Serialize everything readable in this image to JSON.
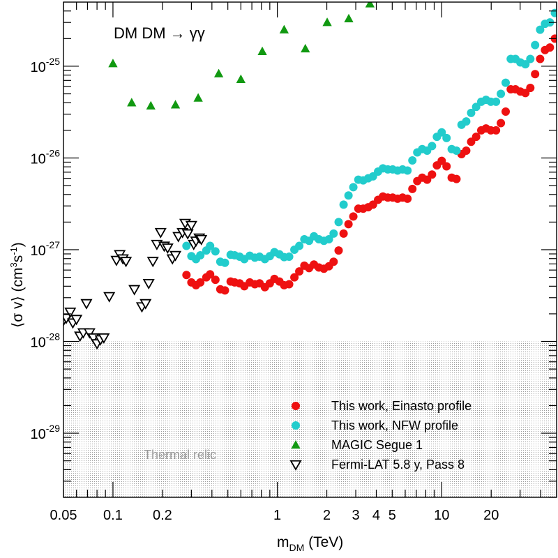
{
  "chart_data": {
    "type": "scatter",
    "xscale": "log",
    "yscale": "log",
    "xlim": [
      0.05,
      42
    ],
    "ylim": [
      2e-30,
      5e-25
    ],
    "xlabel_main": "m",
    "xlabel_sub": "DM",
    "xlabel_unit": " (TeV)",
    "ylabel_open": "⟨σ v⟩ (cm",
    "ylabel_sup1": "3",
    "ylabel_mid": "s",
    "ylabel_sup2": "-1",
    "ylabel_close": ")",
    "annotation": "DM DM → γγ",
    "thermal_relic": {
      "label": "Thermal relic",
      "ymax": 1e-28
    },
    "x_ticks": [
      {
        "value": 0.05,
        "label": "0.05"
      },
      {
        "value": 0.1,
        "label": "0.1"
      },
      {
        "value": 0.2,
        "label": "0.2"
      },
      {
        "value": 1,
        "label": "1"
      },
      {
        "value": 2,
        "label": "2"
      },
      {
        "value": 3,
        "label": "3"
      },
      {
        "value": 4,
        "label": "4"
      },
      {
        "value": 5,
        "label": "5"
      },
      {
        "value": 10,
        "label": "10"
      },
      {
        "value": 20,
        "label": "20"
      }
    ],
    "y_ticks": [
      {
        "value": 1e-29,
        "base": "10",
        "exp": "-29"
      },
      {
        "value": 1e-28,
        "base": "10",
        "exp": "-28"
      },
      {
        "value": 1e-27,
        "base": "10",
        "exp": "-27"
      },
      {
        "value": 1e-26,
        "base": "10",
        "exp": "-26"
      },
      {
        "value": 1e-25,
        "base": "10",
        "exp": "-25"
      }
    ],
    "legend_position": "bottom-right",
    "series": [
      {
        "name": "This work, Einasto profile",
        "marker": "circle",
        "color": "#ee1111",
        "points": [
          [
            0.28,
            5.3e-28
          ],
          [
            0.3,
            4.4e-28
          ],
          [
            0.32,
            4.1e-28
          ],
          [
            0.34,
            4.4e-28
          ],
          [
            0.37,
            5e-28
          ],
          [
            0.39,
            5.4e-28
          ],
          [
            0.42,
            4.7e-28
          ],
          [
            0.45,
            3.7e-28
          ],
          [
            0.48,
            3.6e-28
          ],
          [
            0.52,
            4.5e-28
          ],
          [
            0.55,
            4.4e-28
          ],
          [
            0.59,
            4.3e-28
          ],
          [
            0.63,
            4e-28
          ],
          [
            0.68,
            4.4e-28
          ],
          [
            0.73,
            4.2e-28
          ],
          [
            0.78,
            4.3e-28
          ],
          [
            0.84,
            3.9e-28
          ],
          [
            0.9,
            4.3e-28
          ],
          [
            0.96,
            4.8e-28
          ],
          [
            1.03,
            4.5e-28
          ],
          [
            1.1,
            4.1e-28
          ],
          [
            1.18,
            4.2e-28
          ],
          [
            1.27,
            5e-28
          ],
          [
            1.36,
            5.8e-28
          ],
          [
            1.46,
            6.7e-28
          ],
          [
            1.56,
            6.3e-28
          ],
          [
            1.67,
            6.9e-28
          ],
          [
            1.79,
            6.4e-28
          ],
          [
            1.92,
            6.2e-28
          ],
          [
            2.06,
            6.6e-28
          ],
          [
            2.2,
            7.4e-28
          ],
          [
            2.36,
            9.8e-28
          ],
          [
            2.53,
            1.5e-27
          ],
          [
            2.71,
            1.9e-27
          ],
          [
            2.9,
            2.3e-27
          ],
          [
            3.11,
            2.8e-27
          ],
          [
            3.33,
            2.8e-27
          ],
          [
            3.57,
            2.9e-27
          ],
          [
            3.82,
            3.1e-27
          ],
          [
            4.1,
            3.5e-27
          ],
          [
            4.39,
            3.8e-27
          ],
          [
            4.7,
            3.7e-27
          ],
          [
            5.03,
            3.7e-27
          ],
          [
            5.39,
            3.6e-27
          ],
          [
            5.78,
            3.7e-27
          ],
          [
            6.19,
            3.6e-27
          ],
          [
            6.63,
            4.6e-27
          ],
          [
            7.1,
            5.6e-27
          ],
          [
            7.61,
            6.1e-27
          ],
          [
            8.15,
            5.8e-27
          ],
          [
            8.73,
            6.6e-27
          ],
          [
            9.35,
            8.3e-27
          ],
          [
            10.0,
            9.3e-27
          ],
          [
            10.7,
            8.1e-27
          ],
          [
            11.5,
            6.1e-27
          ],
          [
            12.3,
            5.9e-27
          ],
          [
            13.2,
            1.1e-26
          ],
          [
            14.1,
            1.2e-26
          ],
          [
            15.1,
            1.5e-26
          ],
          [
            16.2,
            1.7e-26
          ],
          [
            17.4,
            2e-26
          ],
          [
            18.6,
            2.1e-26
          ],
          [
            19.9,
            2e-26
          ],
          [
            21.4,
            2e-26
          ],
          [
            22.9,
            2.4e-26
          ],
          [
            24.5,
            3.2e-26
          ],
          [
            26.3,
            5.6e-26
          ],
          [
            28.1,
            5.6e-26
          ],
          [
            30.1,
            5.3e-26
          ],
          [
            32.3,
            5.1e-26
          ],
          [
            34.6,
            5.8e-26
          ],
          [
            37.0,
            8.2e-26
          ],
          [
            39.7,
            1.2e-25
          ],
          [
            42.5,
            1.5e-25
          ],
          [
            45.5,
            1.6e-25
          ],
          [
            48.8,
            2e-25
          ]
        ]
      },
      {
        "name": "This work, NFW profile",
        "marker": "circle",
        "color": "#22cccc",
        "points": [
          [
            0.28,
            1.1e-27
          ],
          [
            0.3,
            8.5e-28
          ],
          [
            0.32,
            7.9e-28
          ],
          [
            0.34,
            8.7e-28
          ],
          [
            0.37,
            9.8e-28
          ],
          [
            0.39,
            1.1e-27
          ],
          [
            0.42,
            9.6e-28
          ],
          [
            0.45,
            7.4e-28
          ],
          [
            0.48,
            7.2e-28
          ],
          [
            0.52,
            8.8e-28
          ],
          [
            0.55,
            8.7e-28
          ],
          [
            0.59,
            8.4e-28
          ],
          [
            0.63,
            7.9e-28
          ],
          [
            0.68,
            8.6e-28
          ],
          [
            0.73,
            8.2e-28
          ],
          [
            0.78,
            8.4e-28
          ],
          [
            0.84,
            7.9e-28
          ],
          [
            0.9,
            8.5e-28
          ],
          [
            0.96,
            9.4e-28
          ],
          [
            1.03,
            8.9e-28
          ],
          [
            1.1,
            8.3e-28
          ],
          [
            1.18,
            8.4e-28
          ],
          [
            1.27,
            1e-27
          ],
          [
            1.36,
            1.1e-27
          ],
          [
            1.46,
            1.3e-27
          ],
          [
            1.56,
            1.25e-27
          ],
          [
            1.67,
            1.4e-27
          ],
          [
            1.79,
            1.3e-27
          ],
          [
            1.92,
            1.25e-27
          ],
          [
            2.06,
            1.3e-27
          ],
          [
            2.2,
            1.5e-27
          ],
          [
            2.36,
            2e-27
          ],
          [
            2.53,
            3.1e-27
          ],
          [
            2.71,
            3.9e-27
          ],
          [
            2.9,
            4.8e-27
          ],
          [
            3.11,
            5.8e-27
          ],
          [
            3.33,
            5.7e-27
          ],
          [
            3.57,
            6e-27
          ],
          [
            3.82,
            6.3e-27
          ],
          [
            4.1,
            7.1e-27
          ],
          [
            4.39,
            7.7e-27
          ],
          [
            4.7,
            7.5e-27
          ],
          [
            5.03,
            7.5e-27
          ],
          [
            5.39,
            7.3e-27
          ],
          [
            5.78,
            7.5e-27
          ],
          [
            6.19,
            7.3e-27
          ],
          [
            6.63,
            9.4e-27
          ],
          [
            7.1,
            1.15e-26
          ],
          [
            7.61,
            1.25e-26
          ],
          [
            8.15,
            1.2e-26
          ],
          [
            8.73,
            1.35e-26
          ],
          [
            9.35,
            1.7e-26
          ],
          [
            10.0,
            1.9e-26
          ],
          [
            10.7,
            1.65e-26
          ],
          [
            11.5,
            1.25e-26
          ],
          [
            12.3,
            1.2e-26
          ],
          [
            13.2,
            2.3e-26
          ],
          [
            14.1,
            2.5e-26
          ],
          [
            15.1,
            3.1e-26
          ],
          [
            16.2,
            3.6e-26
          ],
          [
            17.4,
            4.1e-26
          ],
          [
            18.6,
            4.3e-26
          ],
          [
            19.9,
            4.1e-26
          ],
          [
            21.4,
            4.1e-26
          ],
          [
            22.9,
            5e-26
          ],
          [
            24.5,
            6.6e-26
          ],
          [
            26.3,
            1.2e-25
          ],
          [
            28.1,
            1.2e-25
          ],
          [
            30.1,
            1.1e-25
          ],
          [
            32.3,
            1.05e-25
          ],
          [
            34.6,
            1.2e-25
          ],
          [
            37.0,
            1.7e-25
          ],
          [
            39.7,
            2.5e-25
          ],
          [
            42.5,
            2.9e-25
          ],
          [
            45.5,
            3e-25
          ],
          [
            48.8,
            3.8e-25
          ]
        ]
      },
      {
        "name": "MAGIC Segue 1",
        "marker": "triangle-up",
        "color": "#119911",
        "points": [
          [
            0.1,
            1.07e-25
          ],
          [
            0.13,
            4e-26
          ],
          [
            0.17,
            3.7e-26
          ],
          [
            0.24,
            3.8e-26
          ],
          [
            0.33,
            4.5e-26
          ],
          [
            0.44,
            8.3e-26
          ],
          [
            0.6,
            7.2e-26
          ],
          [
            0.81,
            1.45e-25
          ],
          [
            1.1,
            2.5e-25
          ],
          [
            1.48,
            1.55e-25
          ],
          [
            2.01,
            3e-25
          ],
          [
            2.72,
            3.3e-25
          ],
          [
            3.66,
            4.8e-25
          ]
        ]
      },
      {
        "name": "Fermi-LAT 5.8 y, Pass 8",
        "marker": "triangle-down",
        "color": "#000000",
        "points": [
          [
            0.05,
            1.7e-28
          ],
          [
            0.052,
            1.8e-28
          ],
          [
            0.055,
            2.1e-28
          ],
          [
            0.057,
            1.6e-28
          ],
          [
            0.06,
            1.75e-28
          ],
          [
            0.063,
            1.15e-28
          ],
          [
            0.066,
            1.25e-28
          ],
          [
            0.069,
            2.6e-28
          ],
          [
            0.072,
            1.25e-28
          ],
          [
            0.076,
            1.1e-28
          ],
          [
            0.08,
            9.5e-29
          ],
          [
            0.084,
            1.05e-28
          ],
          [
            0.088,
            1.1e-28
          ],
          [
            0.095,
            3.1e-28
          ],
          [
            0.105,
            7.7e-28
          ],
          [
            0.11,
            8.9e-28
          ],
          [
            0.115,
            8e-28
          ],
          [
            0.12,
            7.5e-28
          ],
          [
            0.135,
            3.7e-28
          ],
          [
            0.15,
            2.4e-28
          ],
          [
            0.158,
            2.6e-28
          ],
          [
            0.165,
            4.3e-28
          ],
          [
            0.175,
            7.5e-28
          ],
          [
            0.185,
            1.15e-27
          ],
          [
            0.195,
            1.55e-27
          ],
          [
            0.205,
            1.1e-27
          ],
          [
            0.215,
            1.05e-27
          ],
          [
            0.23,
            8e-28
          ],
          [
            0.24,
            8.7e-28
          ],
          [
            0.25,
            1.4e-27
          ],
          [
            0.265,
            1.55e-27
          ],
          [
            0.275,
            1.95e-27
          ],
          [
            0.285,
            1.5e-27
          ],
          [
            0.3,
            1.85e-27
          ],
          [
            0.31,
            1.15e-27
          ],
          [
            0.32,
            1.25e-27
          ],
          [
            0.335,
            1.35e-27
          ],
          [
            0.345,
            1.3e-27
          ]
        ]
      }
    ]
  }
}
